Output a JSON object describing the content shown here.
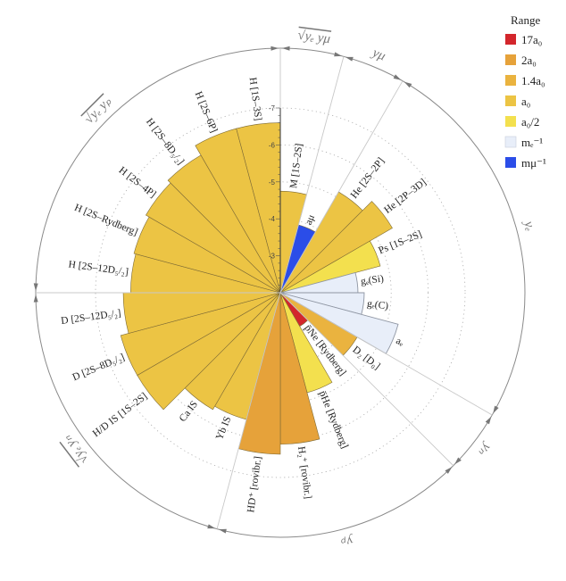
{
  "chart_data": {
    "type": "polar-bar",
    "title": "",
    "radial_axis": {
      "ticks": [
        -3,
        -4,
        -5,
        -6,
        -7
      ],
      "origin_value": -2,
      "grid": "dotted circles"
    },
    "legend": {
      "title": "Range",
      "placement": "top-right",
      "items": [
        {
          "label": "17a₀",
          "color": "#D3262C"
        },
        {
          "label": "2a₀",
          "color": "#E6A23A"
        },
        {
          "label": "1.4a₀",
          "color": "#EAB33F"
        },
        {
          "label": "a₀",
          "color": "#ECC444"
        },
        {
          "label": "a₀/2",
          "color": "#F3E04E"
        },
        {
          "label": "mₑ⁻¹",
          "color": "#E8EEF9"
        },
        {
          "label": "mμ⁻¹",
          "color": "#2B4DE8"
        }
      ]
    },
    "bars": [
      {
        "label": "M [1S–2S]",
        "value": -4.75,
        "range": 3
      },
      {
        "label": "aμ",
        "value": -3.9,
        "range": 6
      },
      {
        "label": "He [2S–2P]",
        "value": -5.15,
        "range": 3
      },
      {
        "label": "He [2P–3D]",
        "value": -5.5,
        "range": 3
      },
      {
        "label": "Ps [1S–2S]",
        "value": -4.8,
        "range": 4
      },
      {
        "label": "gₑ(Si)",
        "value": -4.1,
        "range": 5
      },
      {
        "label": "gₑ(C)",
        "value": -4.27,
        "range": 5
      },
      {
        "label": "aₑ",
        "value": -5.3,
        "range": 5
      },
      {
        "label": "D₂ [D₀]",
        "value": -4.4,
        "range": 2
      },
      {
        "label": "p̄Ne [Rydberg]",
        "value": -3.05,
        "range": 0
      },
      {
        "label": "p̄He [Rydberg]",
        "value": -4.8,
        "range": 4
      },
      {
        "label": "H₂⁺ [rovibr.]",
        "value": -6.1,
        "range": 1
      },
      {
        "label": "HD⁺ [rovibr.]",
        "value": -6.37,
        "range": 1
      },
      {
        "label": "Yb IS",
        "value": -5.55,
        "range": 3
      },
      {
        "label": "Ca IS",
        "value": -5.65,
        "range": 3
      },
      {
        "label": "H/D IS [1S–2S]",
        "value": -6.47,
        "range": 3
      },
      {
        "label": "D [2S–8D₅/₂]",
        "value": -6.47,
        "range": 3
      },
      {
        "label": "D [2S–12D₅/₂]",
        "value": -6.25,
        "range": 3
      },
      {
        "label": "H [2S–12D₅/₂]",
        "value": -6.05,
        "range": 3
      },
      {
        "label": "H [2S–Rydberg]",
        "value": -6.1,
        "range": 3
      },
      {
        "label": "H [2S–4P]",
        "value": -6.2,
        "range": 3
      },
      {
        "label": "H [2S–8D₅/₂]",
        "value": -6.3,
        "range": 3
      },
      {
        "label": "H [2S–6P]",
        "value": -6.6,
        "range": 3
      },
      {
        "label": "H [1S–3S]",
        "value": -6.6,
        "range": 3
      }
    ],
    "groups": [
      {
        "label": "√yₑ yμ",
        "from": 0,
        "to": 0
      },
      {
        "label": "yμ",
        "from": 1,
        "to": 1
      },
      {
        "label": "yₑ",
        "from": 2,
        "to": 7
      },
      {
        "label": "yₙ",
        "from": 8,
        "to": 8
      },
      {
        "label": "yₚ",
        "from": 9,
        "to": 12
      },
      {
        "label": "√yₑ yₙ",
        "from": 13,
        "to": 17
      },
      {
        "label": "√yₑ yₚ",
        "from": 18,
        "to": 23
      }
    ]
  }
}
